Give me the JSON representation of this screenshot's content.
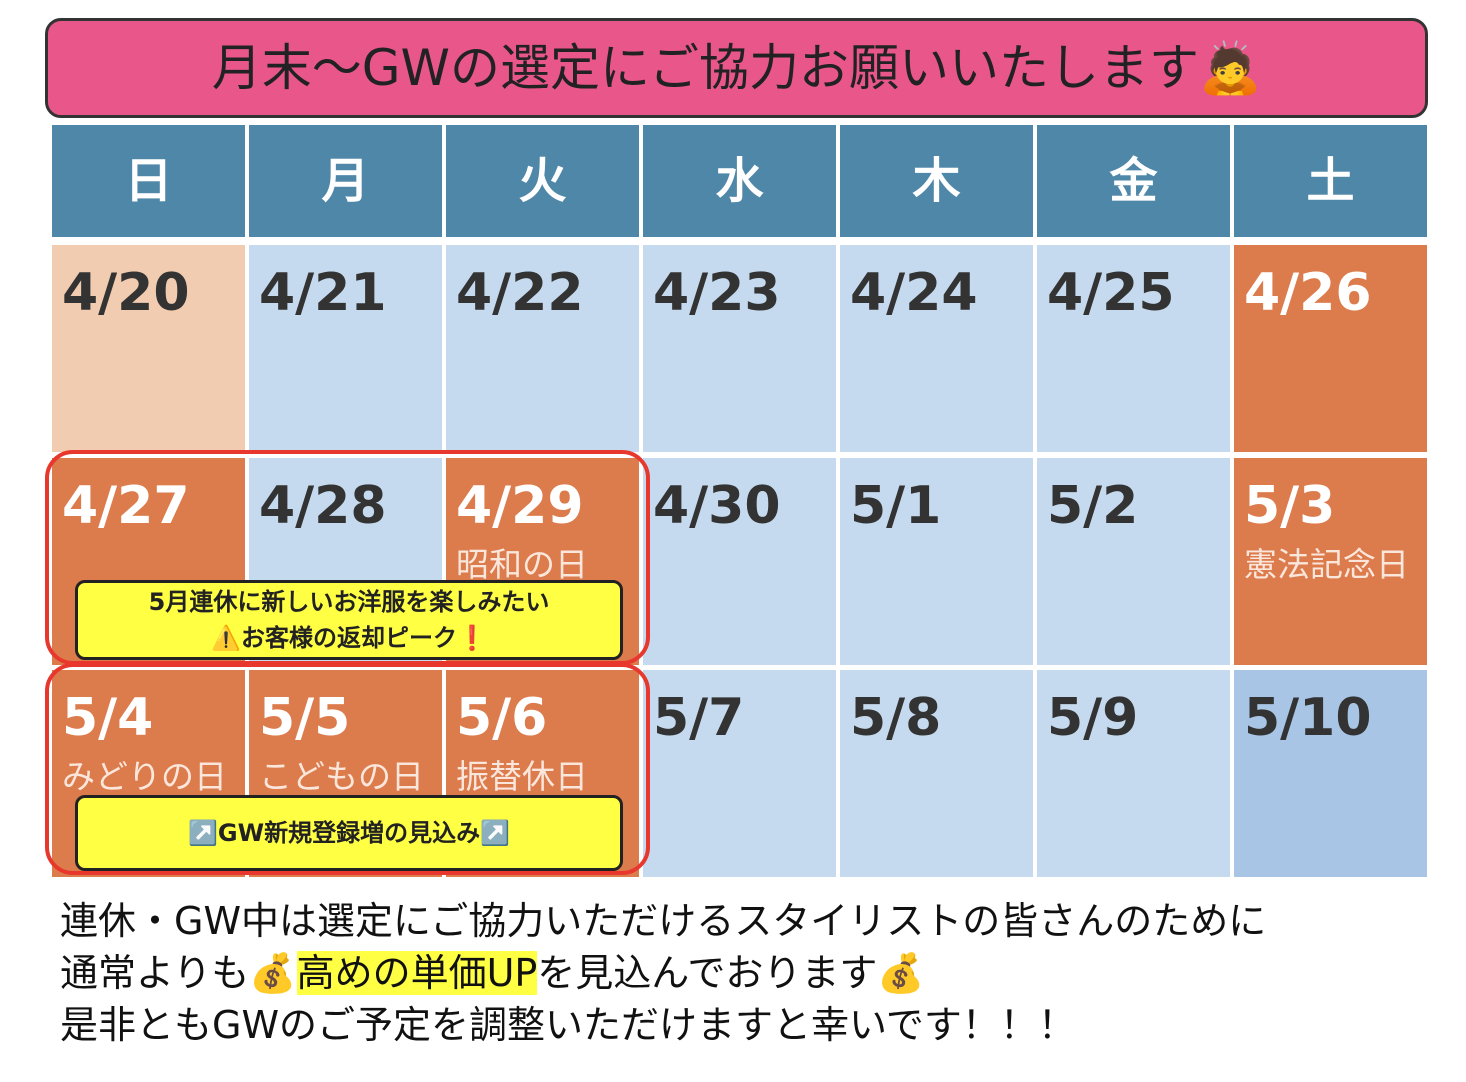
{
  "title": "月末〜GWの選定にご協力お願いいたします🙇",
  "weekdays": [
    "日",
    "月",
    "火",
    "水",
    "木",
    "金",
    "土"
  ],
  "weeks": [
    [
      {
        "date": "4/20",
        "color": "#f2ccb0"
      },
      {
        "date": "4/21",
        "color": "#c6daef"
      },
      {
        "date": "4/22",
        "color": "#c6daef"
      },
      {
        "date": "4/23",
        "color": "#c6daef"
      },
      {
        "date": "4/24",
        "color": "#c6daef"
      },
      {
        "date": "4/25",
        "color": "#c6daef"
      },
      {
        "date": "4/26",
        "color": "#dc7b4b"
      }
    ],
    [
      {
        "date": "4/27",
        "color": "#dc7b4b"
      },
      {
        "date": "4/28",
        "color": "#c6daef"
      },
      {
        "date": "4/29",
        "holiday": "昭和の日",
        "color": "#dc7b4b"
      },
      {
        "date": "4/30",
        "color": "#c6daef"
      },
      {
        "date": "5/1",
        "color": "#c6daef"
      },
      {
        "date": "5/2",
        "color": "#c6daef"
      },
      {
        "date": "5/3",
        "holiday": "憲法記念日",
        "color": "#dc7b4b"
      }
    ],
    [
      {
        "date": "5/4",
        "holiday": "みどりの日",
        "color": "#dc7b4b"
      },
      {
        "date": "5/5",
        "holiday": "こどもの日",
        "color": "#dc7b4b"
      },
      {
        "date": "5/6",
        "holiday": "振替休日",
        "color": "#dc7b4b"
      },
      {
        "date": "5/7",
        "color": "#c6daef"
      },
      {
        "date": "5/8",
        "color": "#c6daef"
      },
      {
        "date": "5/9",
        "color": "#c6daef"
      },
      {
        "date": "5/10",
        "color": "#a8c5e6"
      }
    ]
  ],
  "callouts": [
    {
      "lines": [
        "5月連休に新しいお洋服を楽しみたい",
        "⚠️お客様の返却ピーク❗"
      ]
    },
    {
      "lines": [
        "↗️GW新規登録増の見込み↗️"
      ]
    }
  ],
  "body": [
    {
      "before": "連休・GW中は選定にご協力いただけるスタイリストの皆さんのために"
    },
    {
      "before": "通常よりも💰",
      "highlight": "高めの単価UP",
      "after": "を見込んでおります💰"
    },
    {
      "before": "是非ともGWのご予定を調整いただけますと幸いです！！！"
    }
  ]
}
